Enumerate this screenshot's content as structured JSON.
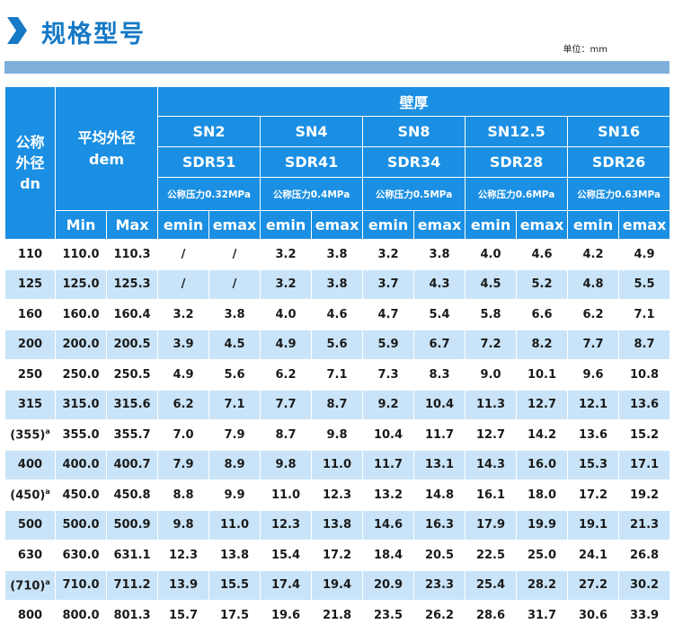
{
  "header": {
    "title": "规格型号",
    "unit": "单位：mm"
  },
  "table": {
    "dn_header": [
      "公称",
      "外径",
      "dn"
    ],
    "dem_header": [
      "平均外径",
      "dem"
    ],
    "wall_header": "壁厚",
    "sn_classes": [
      "SN2",
      "SN4",
      "SN8",
      "SN12.5",
      "SN16"
    ],
    "sdr_classes": [
      "SDR51",
      "SDR41",
      "SDR34",
      "SDR28",
      "SDR26"
    ],
    "pressures": [
      "公称压力0.32MPa",
      "公称压力0.4MPa",
      "公称压力0.5MPa",
      "公称压力0.6MPa",
      "公称压力0.63MPa"
    ],
    "min_label": "Min",
    "max_label": "Max",
    "emin_label": "emin",
    "emax_label": "emax",
    "rows": [
      {
        "dn": "110",
        "sup": "",
        "cells": [
          "110.0",
          "110.3",
          "/",
          "/",
          "3.2",
          "3.8",
          "3.2",
          "3.8",
          "4.0",
          "4.6",
          "4.2",
          "4.9"
        ]
      },
      {
        "dn": "125",
        "sup": "",
        "cells": [
          "125.0",
          "125.3",
          "/",
          "/",
          "3.2",
          "3.8",
          "3.7",
          "4.3",
          "4.5",
          "5.2",
          "4.8",
          "5.5"
        ]
      },
      {
        "dn": "160",
        "sup": "",
        "cells": [
          "160.0",
          "160.4",
          "3.2",
          "3.8",
          "4.0",
          "4.6",
          "4.7",
          "5.4",
          "5.8",
          "6.6",
          "6.2",
          "7.1"
        ]
      },
      {
        "dn": "200",
        "sup": "",
        "cells": [
          "200.0",
          "200.5",
          "3.9",
          "4.5",
          "4.9",
          "5.6",
          "5.9",
          "6.7",
          "7.2",
          "8.2",
          "7.7",
          "8.7"
        ]
      },
      {
        "dn": "250",
        "sup": "",
        "cells": [
          "250.0",
          "250.5",
          "4.9",
          "5.6",
          "6.2",
          "7.1",
          "7.3",
          "8.3",
          "9.0",
          "10.1",
          "9.6",
          "10.8"
        ]
      },
      {
        "dn": "315",
        "sup": "",
        "cells": [
          "315.0",
          "315.6",
          "6.2",
          "7.1",
          "7.7",
          "8.7",
          "9.2",
          "10.4",
          "11.3",
          "12.7",
          "12.1",
          "13.6"
        ]
      },
      {
        "dn": "(355)",
        "sup": "a",
        "cells": [
          "355.0",
          "355.7",
          "7.0",
          "7.9",
          "8.7",
          "9.8",
          "10.4",
          "11.7",
          "12.7",
          "14.2",
          "13.6",
          "15.2"
        ]
      },
      {
        "dn": "400",
        "sup": "",
        "cells": [
          "400.0",
          "400.7",
          "7.9",
          "8.9",
          "9.8",
          "11.0",
          "11.7",
          "13.1",
          "14.3",
          "16.0",
          "15.3",
          "17.1"
        ]
      },
      {
        "dn": "(450)",
        "sup": "a",
        "cells": [
          "450.0",
          "450.8",
          "8.8",
          "9.9",
          "11.0",
          "12.3",
          "13.2",
          "14.8",
          "16.1",
          "18.0",
          "17.2",
          "19.2"
        ]
      },
      {
        "dn": "500",
        "sup": "",
        "cells": [
          "500.0",
          "500.9",
          "9.8",
          "11.0",
          "12.3",
          "13.8",
          "14.6",
          "16.3",
          "17.9",
          "19.9",
          "19.1",
          "21.3"
        ]
      },
      {
        "dn": "630",
        "sup": "",
        "cells": [
          "630.0",
          "631.1",
          "12.3",
          "13.8",
          "15.4",
          "17.2",
          "18.4",
          "20.5",
          "22.5",
          "25.0",
          "24.1",
          "26.8"
        ]
      },
      {
        "dn": "(710)",
        "sup": "a",
        "cells": [
          "710.0",
          "711.2",
          "13.9",
          "15.5",
          "17.4",
          "19.4",
          "20.9",
          "23.3",
          "25.4",
          "28.2",
          "27.2",
          "30.2"
        ]
      },
      {
        "dn": "800",
        "sup": "",
        "cells": [
          "800.0",
          "801.3",
          "15.7",
          "17.5",
          "19.6",
          "21.8",
          "23.5",
          "26.2",
          "28.6",
          "31.7",
          "30.6",
          "33.9"
        ]
      }
    ]
  }
}
